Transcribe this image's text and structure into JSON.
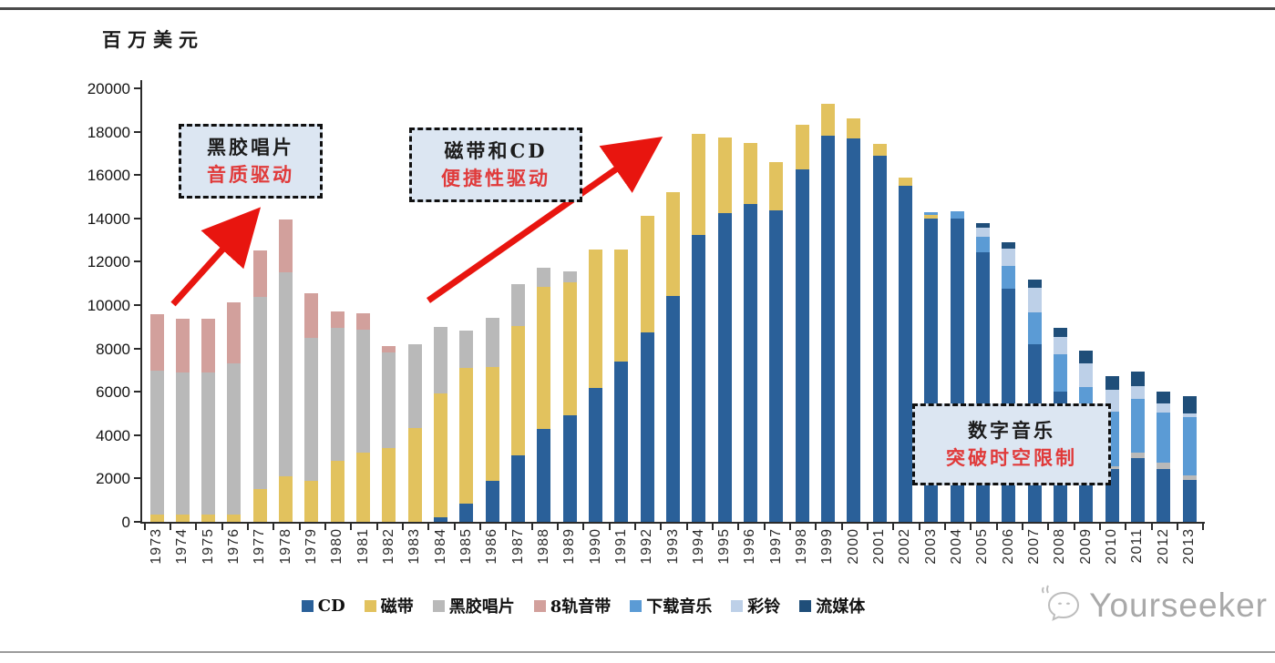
{
  "page": {
    "unit_label": "百万美元",
    "watermark": "Yourseeker"
  },
  "annotations": [
    {
      "line1": "黑胶唱片",
      "line2": "音质驱动",
      "accent": "#e03a3a"
    },
    {
      "line1": "磁带和CD",
      "line2": "便捷性驱动",
      "accent": "#e03a3a"
    },
    {
      "line1": "数字音乐",
      "line2": "突破时空限制",
      "accent": "#e03a3a"
    }
  ],
  "chart_data": {
    "type": "bar",
    "stacked": true,
    "title": "",
    "ylabel": "百万美元",
    "xlabel": "",
    "ylim": [
      0,
      20000
    ],
    "ytick_step": 2000,
    "grid": false,
    "legend_position": "bottom",
    "arrow_color": "#e8150f",
    "categories": [
      1973,
      1974,
      1975,
      1976,
      1977,
      1978,
      1979,
      1980,
      1981,
      1982,
      1983,
      1984,
      1985,
      1986,
      1987,
      1988,
      1989,
      1990,
      1991,
      1992,
      1993,
      1994,
      1995,
      1996,
      1997,
      1998,
      1999,
      2000,
      2001,
      2002,
      2003,
      2004,
      2005,
      2006,
      2007,
      2008,
      2009,
      2010,
      2011,
      2012,
      2013
    ],
    "series": [
      {
        "name": "CD",
        "color": "#2a6099",
        "values": [
          0,
          0,
          0,
          0,
          0,
          0,
          0,
          0,
          0,
          0,
          0,
          220,
          830,
          1880,
          3060,
          4300,
          4900,
          6180,
          7400,
          8760,
          10440,
          13250,
          14250,
          14650,
          14350,
          16250,
          17800,
          17700,
          16900,
          15500,
          14000,
          14000,
          12450,
          10750,
          8200,
          6000,
          3350,
          2430,
          2940,
          2430,
          1950
        ]
      },
      {
        "name": "磁带",
        "color": "#e2c25e",
        "values": [
          340,
          340,
          340,
          340,
          1520,
          2090,
          1900,
          2820,
          3200,
          3390,
          4320,
          5710,
          6260,
          5270,
          5980,
          6530,
          6140,
          6400,
          5180,
          5360,
          4750,
          4650,
          3500,
          2850,
          2250,
          2050,
          1500,
          900,
          550,
          400,
          150,
          0,
          0,
          0,
          0,
          0,
          0,
          0,
          0,
          0,
          0
        ]
      },
      {
        "name": "黑胶唱片",
        "color": "#b9b9b9",
        "values": [
          6650,
          6570,
          6570,
          6990,
          8860,
          9440,
          6600,
          6120,
          5670,
          4430,
          3890,
          3050,
          1750,
          2280,
          1930,
          910,
          520,
          0,
          0,
          0,
          0,
          0,
          0,
          0,
          0,
          0,
          0,
          0,
          0,
          0,
          0,
          0,
          0,
          0,
          0,
          0,
          100,
          150,
          250,
          300,
          200
        ]
      },
      {
        "name": "8轨音带",
        "color": "#d2a09c",
        "values": [
          2590,
          2480,
          2480,
          2800,
          2130,
          2420,
          2050,
          770,
          770,
          280,
          0,
          0,
          0,
          0,
          0,
          0,
          0,
          0,
          0,
          0,
          0,
          0,
          0,
          0,
          0,
          0,
          0,
          0,
          0,
          0,
          0,
          0,
          0,
          0,
          0,
          0,
          0,
          0,
          0,
          0,
          0
        ]
      },
      {
        "name": "下载音乐",
        "color": "#5b9bd5",
        "values": [
          0,
          0,
          0,
          0,
          0,
          0,
          0,
          0,
          0,
          0,
          0,
          0,
          0,
          0,
          0,
          0,
          0,
          0,
          0,
          0,
          0,
          0,
          0,
          0,
          0,
          0,
          0,
          0,
          0,
          0,
          150,
          330,
          700,
          1050,
          1450,
          1750,
          2750,
          2500,
          2500,
          2300,
          2700
        ]
      },
      {
        "name": "彩铃",
        "color": "#bdd0e8",
        "values": [
          0,
          0,
          0,
          0,
          0,
          0,
          0,
          0,
          0,
          0,
          0,
          0,
          0,
          0,
          0,
          0,
          0,
          0,
          0,
          0,
          0,
          0,
          0,
          0,
          0,
          0,
          0,
          0,
          0,
          0,
          0,
          0,
          420,
          800,
          1150,
          800,
          1100,
          1010,
          550,
          420,
          150
        ]
      },
      {
        "name": "流媒体",
        "color": "#1f4e79",
        "values": [
          0,
          0,
          0,
          0,
          0,
          0,
          0,
          0,
          0,
          0,
          0,
          0,
          0,
          0,
          0,
          0,
          0,
          0,
          0,
          0,
          0,
          0,
          0,
          0,
          0,
          0,
          0,
          0,
          0,
          0,
          0,
          0,
          230,
          300,
          380,
          390,
          590,
          620,
          710,
          550,
          800
        ]
      }
    ],
    "annotations_text": [
      "黑胶唱片 音质驱动",
      "磁带和CD 便捷性驱动",
      "数字音乐 突破时空限制"
    ]
  }
}
